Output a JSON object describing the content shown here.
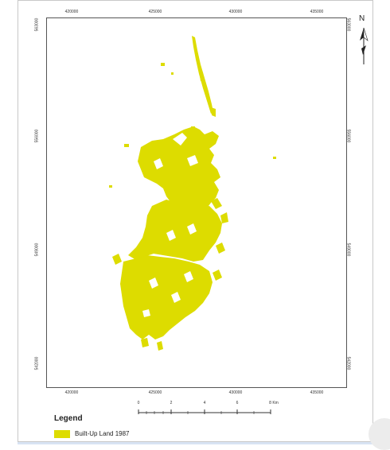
{
  "map": {
    "x_ticks": [
      "420000",
      "425000",
      "430000",
      "435000"
    ],
    "y_ticks": [
      "563000",
      "556000",
      "549000",
      "542000"
    ],
    "north_label": "N",
    "built_up_color": "#dddc00"
  },
  "scale": {
    "labels": [
      "0",
      "2",
      "4",
      "6",
      "8 Km"
    ]
  },
  "legend": {
    "title": "Legend",
    "items": [
      {
        "label": "Built-Up Land 1987",
        "color": "#dddc00"
      }
    ]
  }
}
